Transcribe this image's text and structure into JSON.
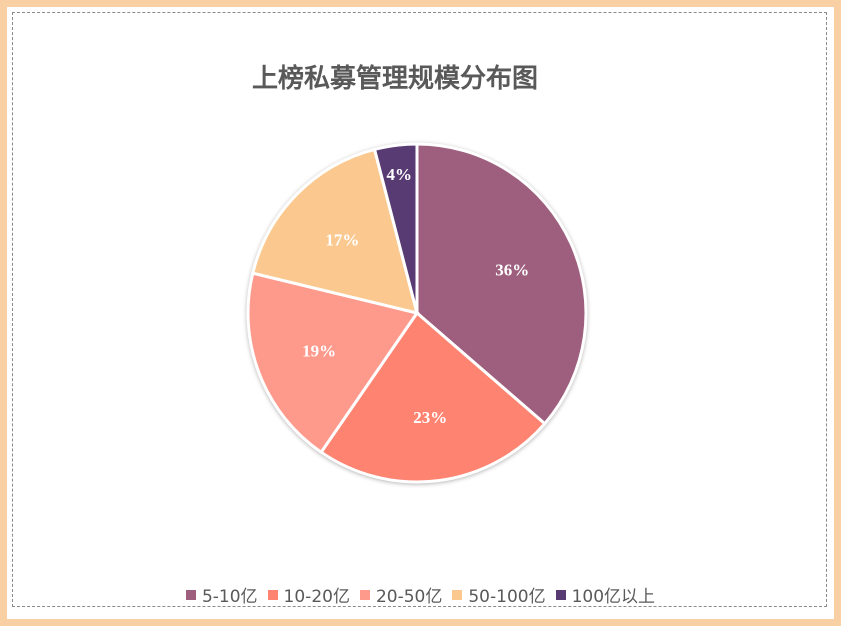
{
  "chart_data": {
    "type": "pie",
    "title": "上榜私募管理规模分布图",
    "categories": [
      "5-10亿",
      "10-20亿",
      "20-50亿",
      "50-100亿",
      "100亿以上"
    ],
    "values": [
      36,
      23,
      19,
      17,
      4
    ],
    "labels": [
      "36%",
      "23%",
      "19%",
      "17%",
      "4%"
    ],
    "colors": [
      "#9e5f7e",
      "#fe8370",
      "#fe9a8c",
      "#fbc990",
      "#593b73"
    ],
    "start_angle": "top",
    "direction": "clockwise",
    "legend": "bottom"
  }
}
